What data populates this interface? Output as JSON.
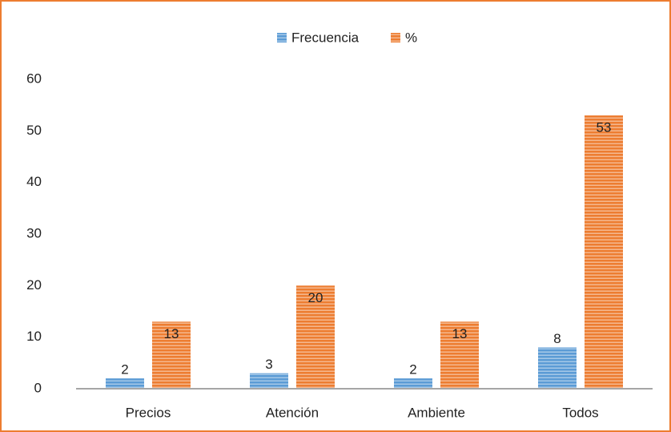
{
  "chart_data": {
    "type": "bar",
    "categories": [
      "Precios",
      "Atención",
      "Ambiente",
      "Todos"
    ],
    "series": [
      {
        "name": "Frecuencia",
        "color": "#5b9bd5",
        "values": [
          2,
          3,
          2,
          8
        ]
      },
      {
        "name": "%",
        "color": "#ed7d31",
        "values": [
          13,
          20,
          13,
          53
        ]
      }
    ],
    "ylim": [
      0,
      60
    ],
    "yticks": [
      0,
      10,
      20,
      30,
      40,
      50,
      60
    ],
    "legend": "top",
    "grid": false
  }
}
